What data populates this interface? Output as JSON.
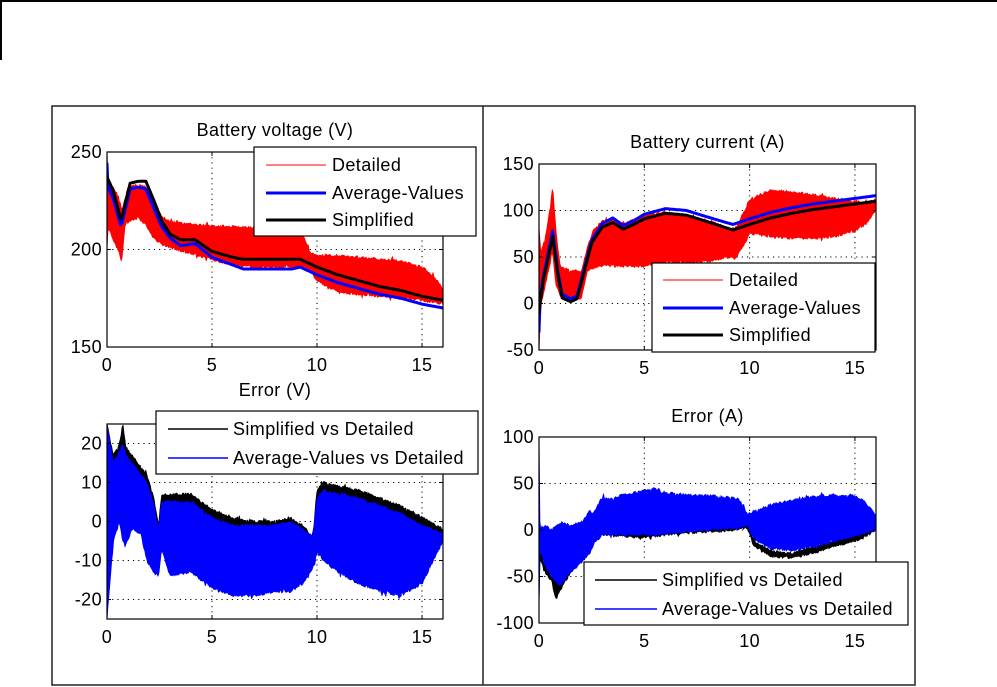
{
  "chart_data": [
    {
      "type": "line",
      "title": "Battery voltage (V)",
      "xlabel": "",
      "ylabel": "",
      "xlim": [
        0,
        16
      ],
      "ylim": [
        150,
        250
      ],
      "xticks": [
        0,
        5,
        10,
        15
      ],
      "yticks": [
        150,
        200,
        250
      ],
      "grid": true,
      "legend": {
        "placement": "top-right"
      },
      "series": [
        {
          "name": "Detailed",
          "color": "#ff0000",
          "style": "band",
          "x": [
            0,
            0.05,
            0.3,
            0.6,
            0.7,
            0.85,
            1.0,
            1.5,
            1.9,
            2.2,
            2.6,
            3.0,
            4.0,
            5.0,
            6.0,
            7.0,
            8.0,
            9.0,
            9.4,
            9.7,
            10.0,
            11,
            12,
            13,
            14,
            15,
            15.5,
            16
          ],
          "upper": [
            250,
            235,
            232,
            226,
            220,
            226,
            232,
            233,
            232,
            226,
            217,
            214,
            213,
            212,
            212,
            211,
            210,
            209,
            206,
            198,
            197,
            197,
            196,
            195,
            194,
            191,
            187,
            180
          ],
          "lower": [
            200,
            212,
            205,
            198,
            193,
            212,
            214,
            216,
            212,
            206,
            203,
            201,
            198,
            195,
            192,
            191,
            191,
            191,
            191,
            189,
            184,
            178,
            177,
            176,
            175,
            174,
            173,
            172
          ]
        },
        {
          "name": "Average-Values",
          "color": "#0000ff",
          "style": "line",
          "x": [
            0,
            0.05,
            0.3,
            0.67,
            0.9,
            1.1,
            1.5,
            1.85,
            2.2,
            2.6,
            3.0,
            3.5,
            4.2,
            5.0,
            6.0,
            6.5,
            8.8,
            9.2,
            10,
            11,
            12,
            13,
            14,
            15,
            16
          ],
          "y": [
            244,
            232,
            226,
            212,
            222,
            231,
            232,
            231,
            222,
            212,
            206,
            202,
            203,
            196,
            192,
            190,
            190,
            191,
            187,
            183,
            180,
            177,
            175,
            172,
            170
          ]
        },
        {
          "name": "Simplified",
          "color": "#000000",
          "style": "line",
          "x": [
            0,
            0.05,
            0.3,
            0.67,
            0.9,
            1.1,
            1.5,
            1.85,
            2.2,
            2.6,
            3.0,
            3.5,
            4.2,
            5.0,
            6.0,
            6.5,
            8.8,
            9.2,
            10,
            11,
            12,
            13,
            14,
            15,
            16
          ],
          "y": [
            237,
            236,
            230,
            215,
            225,
            234,
            235,
            235,
            226,
            215,
            208,
            205,
            205,
            199,
            196,
            195,
            195,
            195,
            191,
            187,
            184,
            181,
            179,
            176,
            174
          ]
        }
      ]
    },
    {
      "type": "line",
      "title": "Battery current (A)",
      "xlabel": "",
      "ylabel": "",
      "xlim": [
        0,
        16
      ],
      "ylim": [
        -50,
        150
      ],
      "xticks": [
        0,
        5,
        10,
        15
      ],
      "yticks": [
        -50,
        0,
        50,
        100,
        150
      ],
      "grid": true,
      "legend": {
        "placement": "bottom-right"
      },
      "series": [
        {
          "name": "Detailed",
          "color": "#ff0000",
          "style": "band",
          "x": [
            0,
            0.1,
            0.3,
            0.5,
            0.65,
            0.8,
            1.0,
            1.5,
            2.0,
            2.3,
            2.6,
            3.0,
            3.5,
            4.0,
            5.0,
            6.0,
            7.0,
            8.0,
            9.0,
            9.3,
            9.6,
            10.0,
            11,
            12,
            13,
            14,
            15,
            15.5,
            16
          ],
          "upper": [
            80,
            55,
            70,
            100,
            125,
            80,
            40,
            35,
            35,
            60,
            80,
            88,
            90,
            85,
            95,
            98,
            95,
            89,
            82,
            80,
            92,
            112,
            122,
            120,
            117,
            113,
            110,
            108,
            112
          ],
          "lower": [
            -50,
            0,
            20,
            40,
            55,
            20,
            8,
            3,
            5,
            35,
            38,
            40,
            42,
            40,
            40,
            45,
            44,
            45,
            50,
            48,
            58,
            75,
            72,
            70,
            70,
            72,
            78,
            85,
            100
          ]
        },
        {
          "name": "Average-Values",
          "color": "#0000ff",
          "style": "line",
          "x": [
            0,
            0.05,
            0.2,
            0.4,
            0.65,
            0.9,
            1.1,
            1.5,
            1.8,
            2.1,
            2.5,
            3.0,
            3.5,
            4.0,
            4.5,
            5,
            6,
            7,
            8,
            9.2,
            10,
            11,
            12,
            13,
            14,
            15,
            16
          ],
          "y": [
            -30,
            5,
            28,
            50,
            78,
            33,
            10,
            5,
            8,
            33,
            68,
            86,
            92,
            84,
            89,
            96,
            102,
            100,
            93,
            85,
            91,
            98,
            103,
            107,
            110,
            113,
            116
          ]
        },
        {
          "name": "Simplified",
          "color": "#000000",
          "style": "line",
          "x": [
            0,
            0.05,
            0.2,
            0.4,
            0.65,
            0.9,
            1.1,
            1.5,
            1.8,
            2.1,
            2.5,
            3.0,
            3.5,
            4.0,
            4.5,
            5,
            6,
            7,
            8,
            9.2,
            10,
            11,
            12,
            13,
            14,
            15,
            16
          ],
          "y": [
            -10,
            0,
            25,
            45,
            72,
            30,
            6,
            2,
            5,
            30,
            65,
            82,
            87,
            80,
            85,
            91,
            97,
            95,
            88,
            79,
            85,
            92,
            97,
            101,
            104,
            107,
            110
          ]
        }
      ]
    },
    {
      "type": "line",
      "title": "Error (V)",
      "xlabel": "",
      "ylabel": "",
      "xlim": [
        0,
        16
      ],
      "ylim": [
        -25,
        25
      ],
      "xticks": [
        0,
        5,
        10,
        15
      ],
      "yticks": [
        -20,
        -10,
        0,
        10,
        20
      ],
      "grid": true,
      "legend": {
        "placement": "top-right"
      },
      "series": [
        {
          "name": "Simplified vs Detailed",
          "color": "#000000",
          "style": "band",
          "x": [
            0,
            0.3,
            0.6,
            0.75,
            0.9,
            1.2,
            1.6,
            1.9,
            2.2,
            2.45,
            2.6,
            3.0,
            4.0,
            4.5,
            5.0,
            6.0,
            7.0,
            8.0,
            8.7,
            9.3,
            9.8,
            10.0,
            10.3,
            11,
            12,
            13,
            14,
            15,
            16
          ],
          "upper": [
            25,
            17,
            20,
            25,
            19,
            17,
            14,
            12,
            7,
            -1,
            7,
            7,
            7,
            5,
            3,
            1,
            0,
            0,
            1,
            -1,
            -4,
            8,
            10,
            9,
            8,
            6,
            4,
            1,
            -2
          ],
          "lower": [
            14,
            10,
            15,
            17,
            14,
            12,
            9,
            7,
            2,
            -3,
            3,
            4,
            3,
            2,
            0,
            -2,
            -2,
            -2,
            -1,
            -3,
            -5,
            5,
            7,
            6,
            5,
            3,
            1,
            -2,
            -4
          ]
        },
        {
          "name": "Average-Values vs Detailed",
          "color": "#0000ff",
          "style": "band",
          "x": [
            0,
            0.3,
            0.6,
            0.75,
            0.9,
            1.2,
            1.6,
            1.9,
            2.2,
            2.45,
            2.6,
            3.0,
            4.0,
            4.5,
            5.0,
            6.0,
            7.0,
            8.0,
            8.7,
            9.3,
            9.8,
            10.0,
            10.3,
            11,
            12,
            13,
            14,
            15,
            16
          ],
          "upper": [
            25,
            15,
            18,
            20,
            17,
            15,
            12,
            10,
            5,
            -2,
            5,
            5,
            5,
            3,
            1,
            -1,
            -1,
            -1,
            0,
            -2,
            -4,
            6,
            8,
            7,
            6,
            4,
            2,
            -1,
            -3
          ],
          "lower": [
            -25,
            -5,
            0,
            -5,
            -6,
            -2,
            -3,
            -10,
            -13,
            -14,
            -7,
            -14,
            -13,
            -15,
            -17,
            -19,
            -19,
            -18,
            -18,
            -16,
            -12,
            -8,
            -10,
            -13,
            -16,
            -18,
            -19,
            -16,
            -5
          ]
        }
      ]
    },
    {
      "type": "line",
      "title": "Error (A)",
      "xlabel": "",
      "ylabel": "",
      "xlim": [
        0,
        16
      ],
      "ylim": [
        -100,
        100
      ],
      "xticks": [
        0,
        5,
        10,
        15
      ],
      "yticks": [
        -100,
        -50,
        0,
        50,
        100
      ],
      "grid": true,
      "legend": {
        "placement": "bottom-right"
      },
      "series": [
        {
          "name": "Simplified vs Detailed",
          "color": "#000000",
          "style": "band",
          "x": [
            0,
            0.05,
            0.3,
            0.6,
            0.8,
            1.0,
            1.5,
            2.0,
            2.4,
            2.6,
            3.0,
            3.5,
            4.0,
            5.0,
            5.5,
            6.0,
            7.0,
            8.0,
            9.0,
            9.5,
            9.9,
            10.2,
            11,
            12,
            13,
            14,
            15,
            15.5,
            16
          ],
          "upper": [
            0,
            -20,
            -30,
            -45,
            -55,
            -55,
            -35,
            -25,
            -15,
            -5,
            0,
            0,
            -2,
            -3,
            -2,
            0,
            1,
            2,
            3,
            5,
            7,
            -12,
            -22,
            -25,
            -18,
            -12,
            -6,
            -2,
            5
          ],
          "lower": [
            -80,
            -30,
            -45,
            -55,
            -75,
            -65,
            -45,
            -35,
            -25,
            -12,
            -5,
            -5,
            -7,
            -8,
            -7,
            -5,
            -3,
            -2,
            -1,
            1,
            3,
            -18,
            -28,
            -30,
            -25,
            -18,
            -12,
            -7,
            0
          ]
        },
        {
          "name": "Average-Values vs Detailed",
          "color": "#0000ff",
          "style": "band",
          "x": [
            0,
            0.05,
            0.3,
            0.6,
            0.8,
            1.0,
            1.5,
            2.0,
            2.4,
            2.6,
            3.0,
            3.5,
            4.0,
            5.0,
            5.5,
            6.0,
            7.0,
            8.0,
            9.0,
            9.5,
            9.9,
            10.2,
            11,
            12,
            13,
            14,
            15,
            15.5,
            16
          ],
          "upper": [
            100,
            0,
            5,
            0,
            3,
            8,
            5,
            8,
            20,
            18,
            35,
            33,
            38,
            42,
            45,
            40,
            38,
            37,
            35,
            33,
            17,
            20,
            27,
            32,
            36,
            38,
            37,
            30,
            15
          ],
          "lower": [
            -80,
            -20,
            -40,
            -50,
            -55,
            -60,
            -45,
            -35,
            -25,
            -15,
            -5,
            -5,
            -5,
            -5,
            -5,
            -4,
            -2,
            0,
            2,
            3,
            5,
            -10,
            -20,
            -22,
            -18,
            -12,
            -7,
            -3,
            0
          ]
        }
      ]
    }
  ]
}
